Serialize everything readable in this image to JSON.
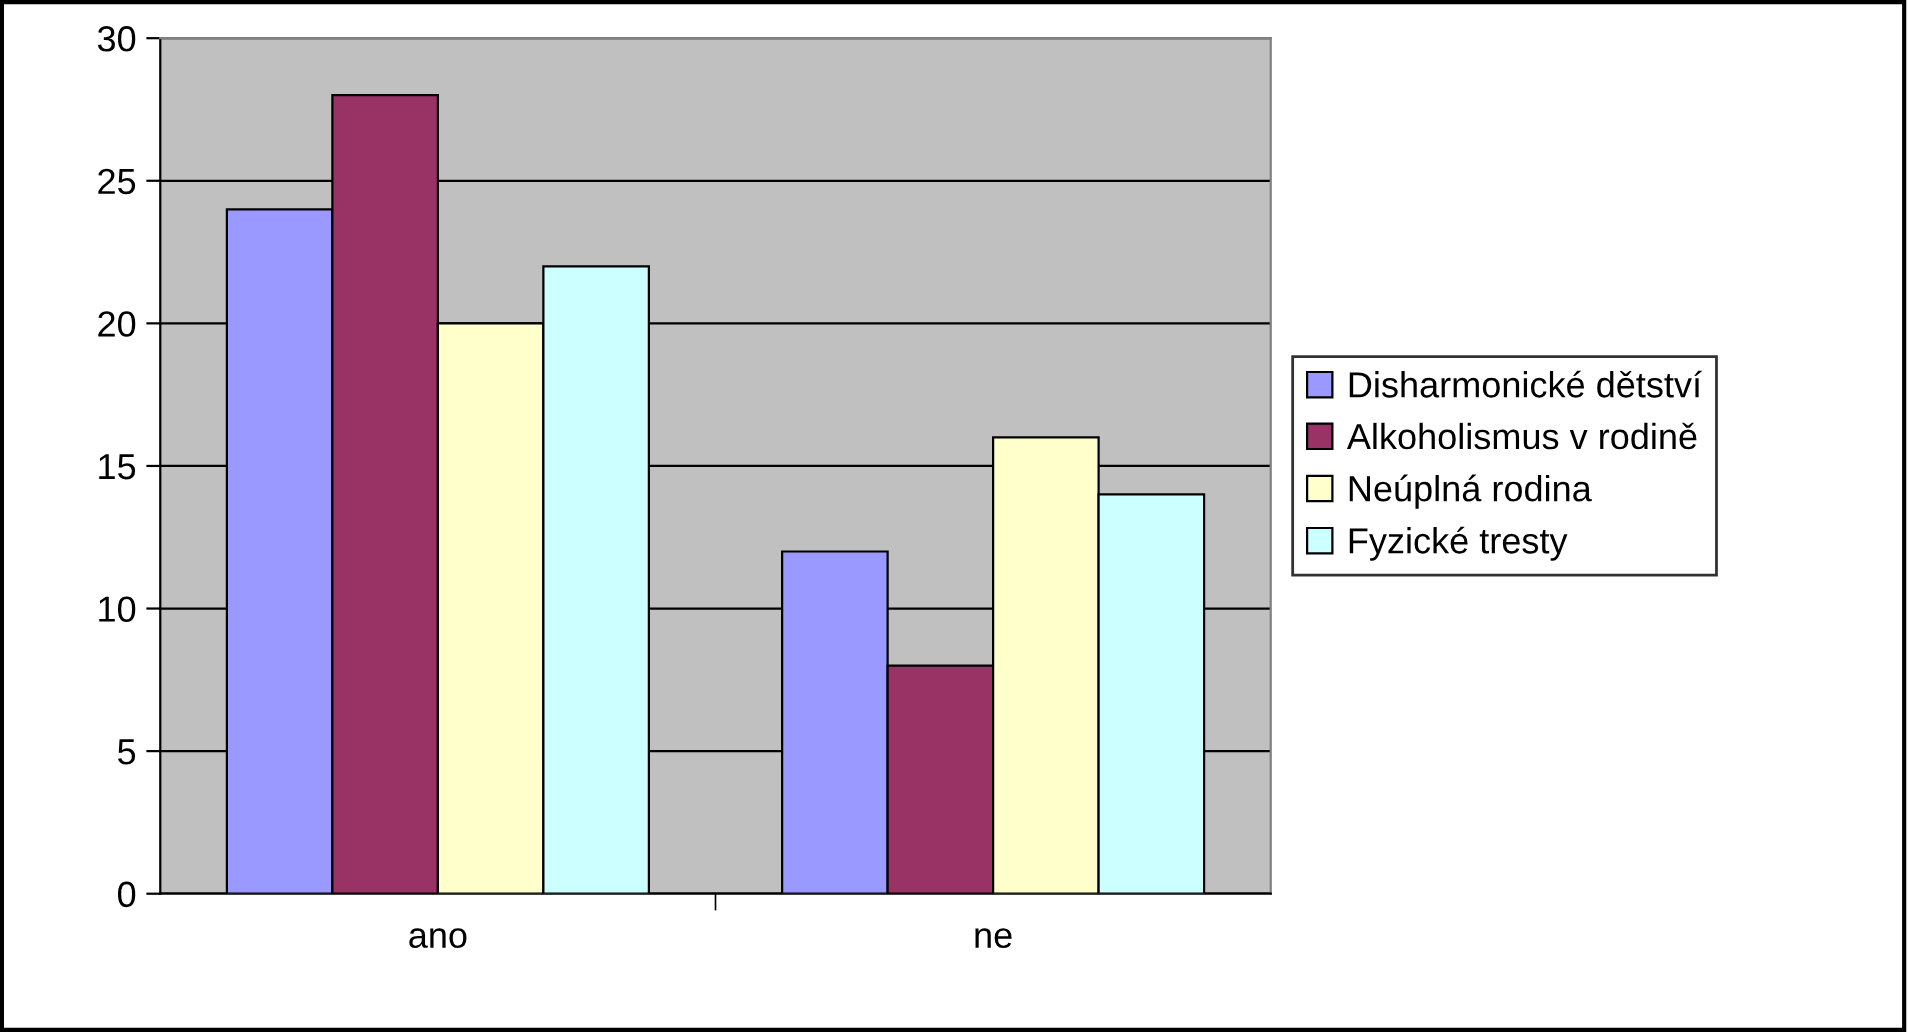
{
  "chart_data": {
    "type": "bar",
    "categories": [
      "ano",
      "ne"
    ],
    "series": [
      {
        "name": "Disharmonické dětství",
        "color": "#9999ff",
        "values": [
          24,
          12
        ]
      },
      {
        "name": "Alkoholismus v rodině",
        "color": "#993366",
        "values": [
          28,
          8
        ]
      },
      {
        "name": "Neúplná rodina",
        "color": "#ffffcc",
        "values": [
          20,
          16
        ]
      },
      {
        "name": "Fyzické tresty",
        "color": "#ccffff",
        "values": [
          22,
          14
        ]
      }
    ],
    "ylim": [
      0,
      30
    ],
    "yticks": [
      0,
      5,
      10,
      15,
      20,
      25,
      30
    ],
    "grid": "y",
    "legend": "right"
  }
}
